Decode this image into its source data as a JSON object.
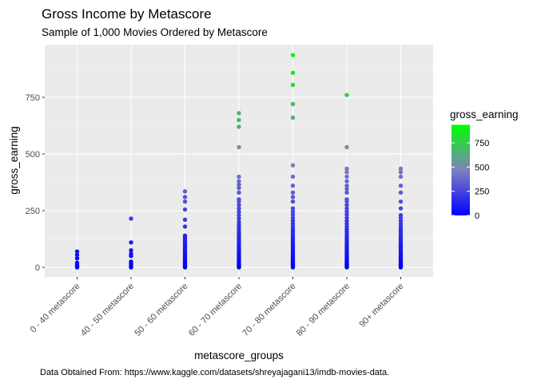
{
  "chart_data": {
    "type": "strip",
    "title": "Gross Income by Metascore",
    "subtitle": "Sample of 1,000 Movies Ordered by Metascore",
    "x_label": "metascore_groups",
    "y_label": "gross_earning",
    "caption": "Data Obtained From: https://www.kaggle.com/datasets/shreyajagani13/imdb-movies-data.",
    "legend_title": "gross_earning",
    "ylim": [
      -42,
      982
    ],
    "yticks": [
      0,
      250,
      500,
      750
    ],
    "grid": true,
    "color_stops": [
      "#0000ff",
      "#8080c0",
      "#00ff00"
    ],
    "color_limits": [
      0,
      936
    ],
    "legend_ticks": [
      0,
      250,
      500,
      750
    ],
    "groups": [
      {
        "category": "0 - 40 metascore",
        "values": [
          0,
          2,
          5,
          10,
          20,
          40,
          55,
          70
        ]
      },
      {
        "category": "40 - 50 metascore",
        "values": [
          0,
          5,
          15,
          25,
          50,
          60,
          75,
          110,
          215
        ]
      },
      {
        "category": "50 - 60 metascore",
        "values": [
          0,
          3,
          6,
          10,
          15,
          20,
          25,
          30,
          36,
          42,
          50,
          58,
          65,
          72,
          80,
          88,
          95,
          102,
          110,
          118,
          125,
          132,
          140,
          180,
          210,
          255,
          290,
          310,
          335
        ]
      },
      {
        "category": "60 - 70 metascore",
        "values": [
          0,
          4,
          8,
          12,
          18,
          24,
          30,
          38,
          45,
          52,
          60,
          68,
          76,
          85,
          94,
          103,
          112,
          122,
          132,
          142,
          152,
          163,
          175,
          188,
          200,
          215,
          230,
          245,
          260,
          275,
          290,
          300,
          330,
          350,
          365,
          380,
          400,
          530,
          620,
          650,
          680
        ]
      },
      {
        "category": "70 - 80 metascore",
        "values": [
          0,
          4,
          8,
          12,
          17,
          22,
          28,
          34,
          40,
          47,
          54,
          62,
          70,
          78,
          87,
          96,
          105,
          115,
          125,
          135,
          146,
          157,
          168,
          180,
          192,
          205,
          218,
          232,
          246,
          260,
          290,
          310,
          330,
          360,
          400,
          450,
          660,
          720,
          805,
          858,
          936
        ]
      },
      {
        "category": "80 - 90 metascore",
        "values": [
          0,
          4,
          8,
          12,
          17,
          22,
          28,
          34,
          40,
          47,
          54,
          62,
          70,
          78,
          87,
          96,
          105,
          115,
          125,
          135,
          146,
          157,
          168,
          180,
          192,
          205,
          218,
          232,
          246,
          260,
          275,
          290,
          300,
          330,
          345,
          360,
          380,
          400,
          420,
          435,
          530,
          760
        ]
      },
      {
        "category": "90+ metascore",
        "values": [
          0,
          4,
          8,
          12,
          17,
          22,
          28,
          34,
          40,
          47,
          54,
          62,
          70,
          78,
          87,
          96,
          105,
          115,
          125,
          135,
          146,
          157,
          168,
          180,
          192,
          205,
          218,
          230,
          260,
          290,
          330,
          360,
          400,
          420,
          435
        ]
      }
    ]
  }
}
